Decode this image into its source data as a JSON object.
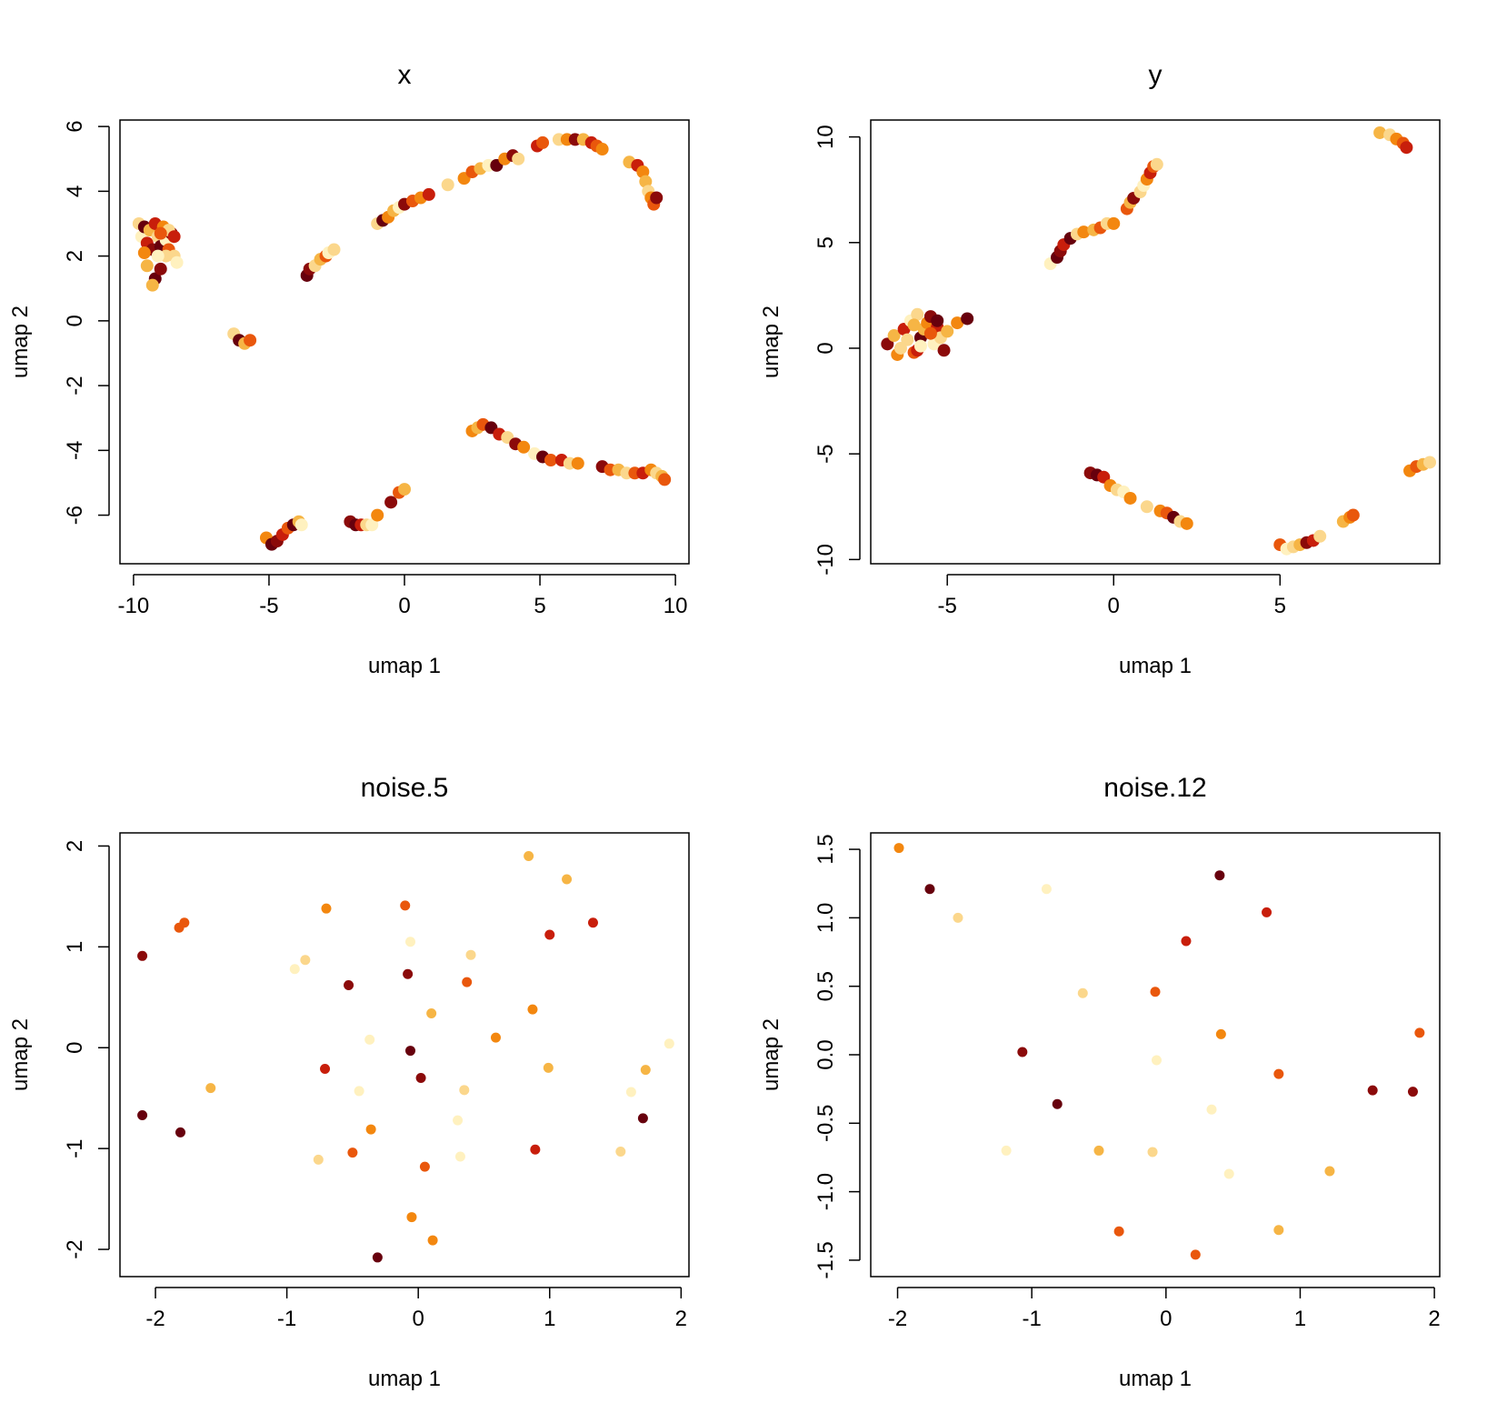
{
  "palette": [
    "#67000D",
    "#8B0A0A",
    "#C81E0B",
    "#E9570C",
    "#F3870F",
    "#F6B545",
    "#FBD78C",
    "#FFF1BF"
  ],
  "chart_data": [
    {
      "type": "scatter",
      "title": "x",
      "xlabel": "umap 1",
      "ylabel": "umap 2",
      "xlim": [
        -10.5,
        10.5
      ],
      "ylim": [
        -7.5,
        6.2
      ],
      "xticks": [
        -10,
        -5,
        0,
        5,
        10
      ],
      "yticks": [
        -6,
        -4,
        -2,
        0,
        2,
        4,
        6
      ],
      "xtick_labels": [
        "-10",
        "-5",
        "0",
        "5",
        "10"
      ],
      "ytick_labels": [
        "-6",
        "-4",
        "-2",
        "0",
        "2",
        "4",
        "6"
      ],
      "points": [
        [
          -9.8,
          3.0,
          6
        ],
        [
          -9.7,
          2.6,
          7
        ],
        [
          -9.6,
          2.9,
          0
        ],
        [
          -9.5,
          2.4,
          2
        ],
        [
          -9.4,
          2.8,
          5
        ],
        [
          -9.3,
          2.2,
          1
        ],
        [
          -9.2,
          3.0,
          2
        ],
        [
          -9.1,
          2.6,
          6
        ],
        [
          -9.0,
          2.3,
          0
        ],
        [
          -8.9,
          2.9,
          4
        ],
        [
          -8.8,
          2.5,
          7
        ],
        [
          -8.7,
          2.2,
          3
        ],
        [
          -8.6,
          2.7,
          1
        ],
        [
          -8.5,
          2.0,
          6
        ],
        [
          -8.4,
          1.8,
          7
        ],
        [
          -9.5,
          1.7,
          5
        ],
        [
          -9.2,
          1.3,
          0
        ],
        [
          -9.0,
          1.6,
          1
        ],
        [
          -8.8,
          2.0,
          6
        ],
        [
          -9.6,
          2.1,
          4
        ],
        [
          -9.3,
          1.1,
          5
        ],
        [
          -9.1,
          2.0,
          7
        ],
        [
          -8.7,
          2.8,
          6
        ],
        [
          -8.5,
          2.6,
          2
        ],
        [
          -9.0,
          2.7,
          3
        ],
        [
          -6.3,
          -0.4,
          6
        ],
        [
          -6.1,
          -0.6,
          0
        ],
        [
          -5.9,
          -0.7,
          5
        ],
        [
          -5.7,
          -0.6,
          3
        ],
        [
          -3.6,
          1.4,
          0
        ],
        [
          -3.5,
          1.6,
          1
        ],
        [
          -3.3,
          1.7,
          6
        ],
        [
          -3.1,
          1.9,
          5
        ],
        [
          -2.9,
          2.0,
          3
        ],
        [
          -2.8,
          2.1,
          7
        ],
        [
          -2.6,
          2.2,
          6
        ],
        [
          -1.0,
          3.0,
          6
        ],
        [
          -0.8,
          3.1,
          0
        ],
        [
          -0.6,
          3.2,
          4
        ],
        [
          -0.4,
          3.4,
          5
        ],
        [
          -0.2,
          3.5,
          7
        ],
        [
          0.0,
          3.6,
          1
        ],
        [
          0.3,
          3.7,
          3
        ],
        [
          0.6,
          3.8,
          4
        ],
        [
          0.9,
          3.9,
          2
        ],
        [
          1.6,
          4.2,
          6
        ],
        [
          2.2,
          4.4,
          4
        ],
        [
          2.5,
          4.6,
          3
        ],
        [
          2.8,
          4.7,
          5
        ],
        [
          3.1,
          4.8,
          7
        ],
        [
          3.4,
          4.8,
          0
        ],
        [
          3.7,
          5.0,
          4
        ],
        [
          4.0,
          5.1,
          1
        ],
        [
          4.2,
          5.0,
          6
        ],
        [
          4.9,
          5.4,
          2
        ],
        [
          5.1,
          5.5,
          3
        ],
        [
          5.7,
          5.6,
          6
        ],
        [
          6.0,
          5.6,
          4
        ],
        [
          6.3,
          5.6,
          1
        ],
        [
          6.6,
          5.6,
          5
        ],
        [
          6.9,
          5.5,
          2
        ],
        [
          7.1,
          5.4,
          3
        ],
        [
          7.3,
          5.3,
          4
        ],
        [
          8.3,
          4.9,
          5
        ],
        [
          8.6,
          4.8,
          2
        ],
        [
          8.8,
          4.6,
          4
        ],
        [
          8.9,
          4.3,
          5
        ],
        [
          9.0,
          4.0,
          6
        ],
        [
          9.1,
          3.8,
          4
        ],
        [
          9.2,
          3.6,
          3
        ],
        [
          9.3,
          3.8,
          1
        ],
        [
          2.5,
          -3.4,
          4
        ],
        [
          2.7,
          -3.3,
          5
        ],
        [
          2.9,
          -3.2,
          3
        ],
        [
          3.2,
          -3.3,
          0
        ],
        [
          3.5,
          -3.5,
          2
        ],
        [
          3.8,
          -3.6,
          6
        ],
        [
          4.1,
          -3.8,
          1
        ],
        [
          4.4,
          -3.9,
          4
        ],
        [
          4.8,
          -4.1,
          7
        ],
        [
          5.1,
          -4.2,
          0
        ],
        [
          5.4,
          -4.3,
          3
        ],
        [
          5.8,
          -4.3,
          2
        ],
        [
          6.1,
          -4.4,
          6
        ],
        [
          6.4,
          -4.4,
          4
        ],
        [
          7.3,
          -4.5,
          1
        ],
        [
          7.6,
          -4.6,
          3
        ],
        [
          7.9,
          -4.6,
          5
        ],
        [
          8.2,
          -4.7,
          6
        ],
        [
          8.5,
          -4.7,
          3
        ],
        [
          8.8,
          -4.7,
          2
        ],
        [
          9.1,
          -4.6,
          4
        ],
        [
          9.3,
          -4.7,
          6
        ],
        [
          9.5,
          -4.8,
          5
        ],
        [
          9.6,
          -4.9,
          3
        ],
        [
          -5.1,
          -6.7,
          4
        ],
        [
          -4.9,
          -6.9,
          0
        ],
        [
          -4.7,
          -6.8,
          1
        ],
        [
          -4.5,
          -6.6,
          2
        ],
        [
          -4.3,
          -6.4,
          3
        ],
        [
          -4.1,
          -6.3,
          0
        ],
        [
          -3.9,
          -6.2,
          5
        ],
        [
          -3.8,
          -6.3,
          7
        ],
        [
          -2.0,
          -6.2,
          1
        ],
        [
          -1.8,
          -6.3,
          0
        ],
        [
          -1.6,
          -6.3,
          2
        ],
        [
          -1.4,
          -6.3,
          6
        ],
        [
          -1.2,
          -6.3,
          7
        ],
        [
          -1.0,
          -6.0,
          4
        ],
        [
          -0.5,
          -5.6,
          1
        ],
        [
          -0.2,
          -5.3,
          3
        ],
        [
          0.0,
          -5.2,
          5
        ]
      ]
    },
    {
      "type": "scatter",
      "title": "y",
      "xlabel": "umap 1",
      "ylabel": "umap 2",
      "xlim": [
        -7.3,
        9.8
      ],
      "ylim": [
        -10.2,
        10.8
      ],
      "xticks": [
        -5,
        0,
        5
      ],
      "yticks": [
        -10,
        -5,
        0,
        5,
        10
      ],
      "xtick_labels": [
        "-5",
        "0",
        "5"
      ],
      "ytick_labels": [
        "-10",
        "-5",
        "0",
        "5",
        "10"
      ],
      "points": [
        [
          -6.8,
          0.2,
          1
        ],
        [
          -6.6,
          0.6,
          5
        ],
        [
          -6.5,
          -0.3,
          4
        ],
        [
          -6.3,
          0.9,
          2
        ],
        [
          -6.2,
          0.4,
          6
        ],
        [
          -6.1,
          1.3,
          7
        ],
        [
          -6.0,
          -0.2,
          3
        ],
        [
          -5.9,
          1.6,
          6
        ],
        [
          -5.8,
          0.5,
          0
        ],
        [
          -5.7,
          0.9,
          5
        ],
        [
          -5.6,
          1.2,
          4
        ],
        [
          -5.5,
          1.5,
          1
        ],
        [
          -5.4,
          0.2,
          7
        ],
        [
          -5.3,
          1.0,
          2
        ],
        [
          -5.2,
          0.5,
          6
        ],
        [
          -5.1,
          -0.1,
          1
        ],
        [
          -5.0,
          0.8,
          5
        ],
        [
          -6.4,
          0.0,
          6
        ],
        [
          -5.9,
          -0.1,
          2
        ],
        [
          -5.5,
          0.7,
          3
        ],
        [
          -4.7,
          1.2,
          4
        ],
        [
          -4.4,
          1.4,
          0
        ],
        [
          -6.0,
          1.1,
          5
        ],
        [
          -5.3,
          1.3,
          0
        ],
        [
          -5.8,
          0.1,
          7
        ],
        [
          -1.9,
          4.0,
          7
        ],
        [
          -1.7,
          4.3,
          0
        ],
        [
          -1.6,
          4.6,
          1
        ],
        [
          -1.5,
          4.9,
          2
        ],
        [
          -1.3,
          5.2,
          0
        ],
        [
          -1.1,
          5.4,
          6
        ],
        [
          -0.9,
          5.5,
          4
        ],
        [
          -0.6,
          5.6,
          5
        ],
        [
          -0.4,
          5.7,
          3
        ],
        [
          -0.2,
          5.9,
          6
        ],
        [
          0.0,
          5.9,
          4
        ],
        [
          0.4,
          6.6,
          3
        ],
        [
          0.5,
          6.9,
          5
        ],
        [
          0.6,
          7.1,
          1
        ],
        [
          0.8,
          7.4,
          6
        ],
        [
          0.9,
          7.7,
          7
        ],
        [
          1.0,
          8.0,
          4
        ],
        [
          1.1,
          8.3,
          2
        ],
        [
          1.2,
          8.6,
          3
        ],
        [
          1.3,
          8.7,
          6
        ],
        [
          8.0,
          10.2,
          5
        ],
        [
          8.3,
          10.1,
          6
        ],
        [
          8.5,
          9.9,
          4
        ],
        [
          8.7,
          9.7,
          3
        ],
        [
          8.8,
          9.5,
          2
        ],
        [
          -0.7,
          -5.9,
          1
        ],
        [
          -0.5,
          -6.0,
          0
        ],
        [
          -0.3,
          -6.1,
          2
        ],
        [
          -0.1,
          -6.5,
          4
        ],
        [
          0.1,
          -6.7,
          6
        ],
        [
          0.3,
          -6.8,
          7
        ],
        [
          0.5,
          -7.1,
          4
        ],
        [
          1.0,
          -7.5,
          6
        ],
        [
          1.4,
          -7.7,
          4
        ],
        [
          1.6,
          -7.8,
          3
        ],
        [
          1.8,
          -8.0,
          0
        ],
        [
          2.0,
          -8.2,
          6
        ],
        [
          2.2,
          -8.3,
          4
        ],
        [
          5.0,
          -9.3,
          3
        ],
        [
          5.2,
          -9.5,
          7
        ],
        [
          5.4,
          -9.4,
          6
        ],
        [
          5.6,
          -9.3,
          5
        ],
        [
          5.8,
          -9.2,
          1
        ],
        [
          6.0,
          -9.1,
          2
        ],
        [
          6.2,
          -8.9,
          6
        ],
        [
          6.9,
          -8.2,
          5
        ],
        [
          7.1,
          -8.0,
          4
        ],
        [
          7.2,
          -7.9,
          3
        ],
        [
          8.9,
          -5.8,
          4
        ],
        [
          9.1,
          -5.6,
          3
        ],
        [
          9.3,
          -5.5,
          5
        ],
        [
          9.5,
          -5.4,
          6
        ]
      ]
    },
    {
      "type": "scatter",
      "title": "noise.5",
      "xlabel": "umap 1",
      "ylabel": "umap 2",
      "xlim": [
        -2.27,
        2.06
      ],
      "ylim": [
        -2.27,
        2.13
      ],
      "xticks": [
        -2,
        -1,
        0,
        1,
        2
      ],
      "yticks": [
        -2,
        -1,
        0,
        1,
        2
      ],
      "xtick_labels": [
        "-2",
        "-1",
        "0",
        "1",
        "2"
      ],
      "ytick_labels": [
        "-2",
        "-1",
        "0",
        "1",
        "2"
      ],
      "points": [
        [
          -2.1,
          0.91,
          1
        ],
        [
          -1.82,
          1.19,
          3
        ],
        [
          -1.78,
          1.24,
          3
        ],
        [
          -2.1,
          -0.67,
          0
        ],
        [
          -1.81,
          -0.84,
          0
        ],
        [
          -1.58,
          -0.4,
          5
        ],
        [
          -0.94,
          0.78,
          7
        ],
        [
          -0.86,
          0.87,
          6
        ],
        [
          -0.7,
          1.38,
          4
        ],
        [
          -0.71,
          -0.21,
          2
        ],
        [
          -0.53,
          0.62,
          1
        ],
        [
          -0.45,
          -0.43,
          7
        ],
        [
          -0.37,
          0.08,
          7
        ],
        [
          -0.36,
          -0.81,
          4
        ],
        [
          -0.31,
          -2.08,
          0
        ],
        [
          -0.76,
          -1.11,
          6
        ],
        [
          -0.5,
          -1.04,
          3
        ],
        [
          -0.1,
          1.41,
          3
        ],
        [
          -0.08,
          0.73,
          1
        ],
        [
          -0.06,
          1.05,
          7
        ],
        [
          -0.06,
          -0.03,
          0
        ],
        [
          -0.05,
          -1.68,
          4
        ],
        [
          0.02,
          -0.3,
          1
        ],
        [
          0.05,
          -1.18,
          3
        ],
        [
          0.1,
          0.34,
          5
        ],
        [
          0.11,
          -1.91,
          4
        ],
        [
          0.3,
          -0.72,
          7
        ],
        [
          0.32,
          -1.08,
          7
        ],
        [
          0.35,
          -0.42,
          6
        ],
        [
          0.37,
          0.65,
          3
        ],
        [
          0.4,
          0.92,
          6
        ],
        [
          0.59,
          0.1,
          4
        ],
        [
          0.84,
          1.9,
          5
        ],
        [
          0.87,
          0.38,
          4
        ],
        [
          0.89,
          -1.01,
          2
        ],
        [
          0.99,
          -0.2,
          5
        ],
        [
          1.0,
          1.12,
          2
        ],
        [
          1.13,
          1.67,
          5
        ],
        [
          1.33,
          1.24,
          2
        ],
        [
          1.54,
          -1.03,
          6
        ],
        [
          1.62,
          -0.44,
          7
        ],
        [
          1.71,
          -0.7,
          0
        ],
        [
          1.73,
          -0.22,
          5
        ],
        [
          1.91,
          0.04,
          7
        ]
      ]
    },
    {
      "type": "scatter",
      "title": "noise.12",
      "xlabel": "umap 1",
      "ylabel": "umap 2",
      "xlim": [
        -2.2,
        2.04
      ],
      "ylim": [
        -1.62,
        1.62
      ],
      "xticks": [
        -2,
        -1,
        0,
        1,
        2
      ],
      "yticks": [
        -1.5,
        -1.0,
        -0.5,
        0.0,
        0.5,
        1.0,
        1.5
      ],
      "xtick_labels": [
        "-2",
        "-1",
        "0",
        "1",
        "2"
      ],
      "ytick_labels": [
        "-1.5",
        "-1.0",
        "-0.5",
        "0.0",
        "0.5",
        "1.0",
        "1.5"
      ],
      "points": [
        [
          -1.99,
          1.51,
          4
        ],
        [
          -1.76,
          1.21,
          0
        ],
        [
          -1.55,
          1.0,
          6
        ],
        [
          -1.19,
          -0.7,
          7
        ],
        [
          -1.07,
          0.02,
          1
        ],
        [
          -0.89,
          1.21,
          7
        ],
        [
          -0.81,
          -0.36,
          0
        ],
        [
          -0.62,
          0.45,
          6
        ],
        [
          -0.5,
          -0.7,
          5
        ],
        [
          -0.35,
          -1.29,
          3
        ],
        [
          -0.1,
          -0.71,
          6
        ],
        [
          -0.08,
          0.46,
          3
        ],
        [
          -0.07,
          -0.04,
          7
        ],
        [
          0.15,
          0.83,
          2
        ],
        [
          0.22,
          -1.46,
          3
        ],
        [
          0.34,
          -0.4,
          7
        ],
        [
          0.4,
          1.31,
          0
        ],
        [
          0.41,
          0.15,
          4
        ],
        [
          0.47,
          -0.87,
          7
        ],
        [
          0.75,
          1.04,
          2
        ],
        [
          0.84,
          -0.14,
          3
        ],
        [
          0.84,
          -1.28,
          5
        ],
        [
          1.22,
          -0.85,
          5
        ],
        [
          1.54,
          -0.26,
          1
        ],
        [
          1.84,
          -0.27,
          1
        ],
        [
          1.89,
          0.16,
          3
        ]
      ]
    }
  ]
}
